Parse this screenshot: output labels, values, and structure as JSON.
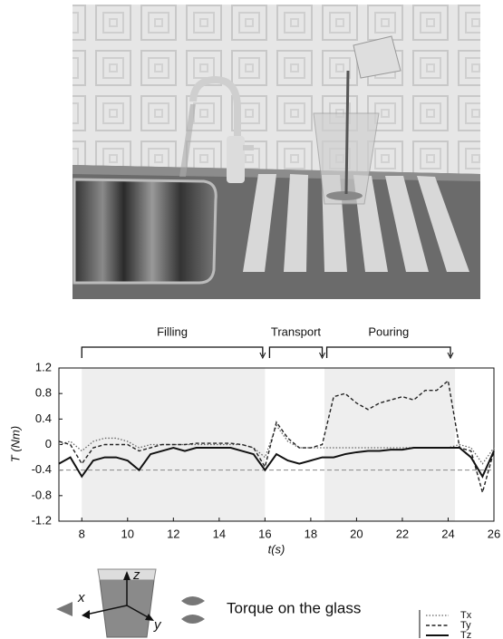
{
  "chart_data": {
    "type": "line",
    "x": [
      7,
      7.5,
      8,
      8.5,
      9,
      9.5,
      10,
      10.5,
      11,
      11.5,
      12,
      12.5,
      13,
      13.5,
      14,
      14.5,
      15,
      15.5,
      16,
      16.5,
      17,
      17.5,
      18,
      18.5,
      19,
      19.5,
      20,
      20.5,
      21,
      21.5,
      22,
      22.5,
      23,
      23.5,
      24,
      24.5,
      25,
      25.5,
      26
    ],
    "series": [
      {
        "name": "Tx",
        "color": "#666666",
        "style": "dotted",
        "values": [
          0,
          0.05,
          -0.1,
          0.05,
          0.1,
          0.1,
          0.05,
          -0.05,
          0,
          0,
          0,
          0,
          0,
          0,
          0,
          0,
          0,
          -0.05,
          -0.2,
          0.3,
          0.05,
          -0.05,
          -0.05,
          -0.05,
          -0.05,
          -0.05,
          -0.05,
          -0.05,
          -0.05,
          -0.05,
          -0.05,
          -0.05,
          -0.05,
          -0.05,
          -0.05,
          0,
          -0.05,
          -0.3,
          -0.05
        ]
      },
      {
        "name": "Ty",
        "color": "#222222",
        "style": "dashed",
        "values": [
          0.05,
          0,
          -0.3,
          -0.05,
          0,
          0,
          0,
          -0.1,
          -0.05,
          0,
          0,
          0,
          0.02,
          0.02,
          0.02,
          0.02,
          0,
          -0.05,
          -0.35,
          0.35,
          0.1,
          -0.05,
          -0.05,
          0,
          0.75,
          0.8,
          0.65,
          0.55,
          0.65,
          0.7,
          0.75,
          0.7,
          0.85,
          0.85,
          1.0,
          -0.05,
          -0.1,
          -0.75,
          -0.1
        ]
      },
      {
        "name": "Tz",
        "color": "#111111",
        "style": "solid",
        "values": [
          -0.3,
          -0.2,
          -0.5,
          -0.25,
          -0.2,
          -0.2,
          -0.25,
          -0.4,
          -0.15,
          -0.1,
          -0.05,
          -0.1,
          -0.05,
          -0.05,
          -0.05,
          -0.05,
          -0.1,
          -0.15,
          -0.4,
          -0.15,
          -0.25,
          -0.3,
          -0.25,
          -0.2,
          -0.2,
          -0.15,
          -0.12,
          -0.1,
          -0.1,
          -0.08,
          -0.08,
          -0.05,
          -0.05,
          -0.05,
          -0.05,
          -0.05,
          -0.2,
          -0.5,
          -0.1
        ]
      }
    ],
    "xlim": [
      7,
      26
    ],
    "xticks": [
      8,
      10,
      12,
      14,
      16,
      18,
      20,
      22,
      24,
      26
    ],
    "ylim": [
      -1.2,
      1.2
    ],
    "yticks": [
      -1.2,
      -0.8,
      -0.4,
      0,
      0.4,
      0.8,
      1.2
    ],
    "ylabel": "T (Nm)",
    "xlabel": "t(s)",
    "ref_line": -0.4,
    "shaded": [
      [
        8,
        16
      ],
      [
        18.6,
        24.3
      ]
    ],
    "phases": [
      {
        "label": "Filling",
        "start": 8,
        "end": 15.9
      },
      {
        "label": "Transport",
        "start": 16.2,
        "end": 18.5
      },
      {
        "label": "Pouring",
        "start": 18.7,
        "end": 24.1
      }
    ],
    "diagram_labels": [
      "x",
      "y",
      "z"
    ],
    "caption": "Torque on the glass"
  }
}
